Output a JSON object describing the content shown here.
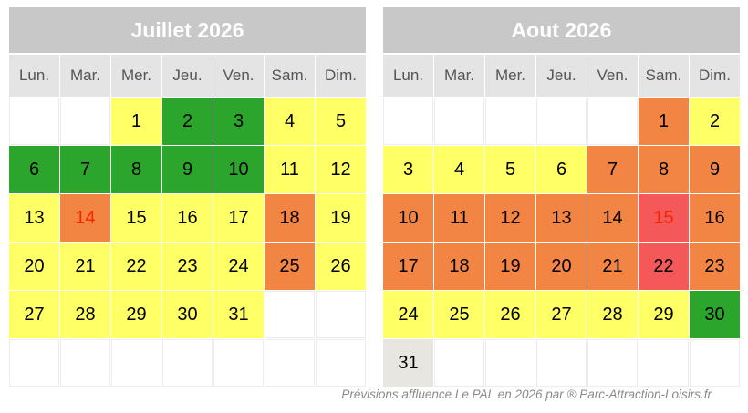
{
  "footer": "Prévisions affluence  Le PAL en 2026 par   ® Parc-Attraction-Loisirs.fr",
  "weekdays": [
    "Lun.",
    "Mar.",
    "Mer.",
    "Jeu.",
    "Ven.",
    "Sam.",
    "Dim."
  ],
  "colors": {
    "yellow": "#ffff66",
    "green": "#2ca52c",
    "orange": "#f28444",
    "red": "#f45858",
    "gray": "#e8e6e0",
    "header": "#c8c8c8",
    "weekday_header": "#e4e4e4",
    "red_text": "#ff2200"
  },
  "calendars": [
    {
      "title": "Juillet 2026",
      "weeks": [
        [
          {
            "day": "",
            "color": "empty"
          },
          {
            "day": "",
            "color": "empty"
          },
          {
            "day": "1",
            "color": "yellow"
          },
          {
            "day": "2",
            "color": "green"
          },
          {
            "day": "3",
            "color": "green"
          },
          {
            "day": "4",
            "color": "yellow"
          },
          {
            "day": "5",
            "color": "yellow"
          }
        ],
        [
          {
            "day": "6",
            "color": "green"
          },
          {
            "day": "7",
            "color": "green"
          },
          {
            "day": "8",
            "color": "green"
          },
          {
            "day": "9",
            "color": "green"
          },
          {
            "day": "10",
            "color": "green"
          },
          {
            "day": "11",
            "color": "yellow"
          },
          {
            "day": "12",
            "color": "yellow"
          }
        ],
        [
          {
            "day": "13",
            "color": "yellow"
          },
          {
            "day": "14",
            "color": "orange",
            "text": "red"
          },
          {
            "day": "15",
            "color": "yellow"
          },
          {
            "day": "16",
            "color": "yellow"
          },
          {
            "day": "17",
            "color": "yellow"
          },
          {
            "day": "18",
            "color": "orange"
          },
          {
            "day": "19",
            "color": "yellow"
          }
        ],
        [
          {
            "day": "20",
            "color": "yellow"
          },
          {
            "day": "21",
            "color": "yellow"
          },
          {
            "day": "22",
            "color": "yellow"
          },
          {
            "day": "23",
            "color": "yellow"
          },
          {
            "day": "24",
            "color": "yellow"
          },
          {
            "day": "25",
            "color": "orange"
          },
          {
            "day": "26",
            "color": "yellow"
          }
        ],
        [
          {
            "day": "27",
            "color": "yellow"
          },
          {
            "day": "28",
            "color": "yellow"
          },
          {
            "day": "29",
            "color": "yellow"
          },
          {
            "day": "30",
            "color": "yellow"
          },
          {
            "day": "31",
            "color": "yellow"
          },
          {
            "day": "",
            "color": "empty"
          },
          {
            "day": "",
            "color": "empty"
          }
        ],
        [
          {
            "day": "",
            "color": "empty"
          },
          {
            "day": "",
            "color": "empty"
          },
          {
            "day": "",
            "color": "empty"
          },
          {
            "day": "",
            "color": "empty"
          },
          {
            "day": "",
            "color": "empty"
          },
          {
            "day": "",
            "color": "empty"
          },
          {
            "day": "",
            "color": "empty"
          }
        ]
      ]
    },
    {
      "title": "Aout 2026",
      "weeks": [
        [
          {
            "day": "",
            "color": "empty"
          },
          {
            "day": "",
            "color": "empty"
          },
          {
            "day": "",
            "color": "empty"
          },
          {
            "day": "",
            "color": "empty"
          },
          {
            "day": "",
            "color": "empty"
          },
          {
            "day": "1",
            "color": "orange"
          },
          {
            "day": "2",
            "color": "yellow"
          }
        ],
        [
          {
            "day": "3",
            "color": "yellow"
          },
          {
            "day": "4",
            "color": "yellow"
          },
          {
            "day": "5",
            "color": "yellow"
          },
          {
            "day": "6",
            "color": "yellow"
          },
          {
            "day": "7",
            "color": "orange"
          },
          {
            "day": "8",
            "color": "orange"
          },
          {
            "day": "9",
            "color": "orange"
          }
        ],
        [
          {
            "day": "10",
            "color": "orange"
          },
          {
            "day": "11",
            "color": "orange"
          },
          {
            "day": "12",
            "color": "orange"
          },
          {
            "day": "13",
            "color": "orange"
          },
          {
            "day": "14",
            "color": "orange"
          },
          {
            "day": "15",
            "color": "red",
            "text": "red"
          },
          {
            "day": "16",
            "color": "orange"
          }
        ],
        [
          {
            "day": "17",
            "color": "orange"
          },
          {
            "day": "18",
            "color": "orange"
          },
          {
            "day": "19",
            "color": "orange"
          },
          {
            "day": "20",
            "color": "orange"
          },
          {
            "day": "21",
            "color": "orange"
          },
          {
            "day": "22",
            "color": "red"
          },
          {
            "day": "23",
            "color": "orange"
          }
        ],
        [
          {
            "day": "24",
            "color": "yellow"
          },
          {
            "day": "25",
            "color": "yellow"
          },
          {
            "day": "26",
            "color": "yellow"
          },
          {
            "day": "27",
            "color": "yellow"
          },
          {
            "day": "28",
            "color": "yellow"
          },
          {
            "day": "29",
            "color": "yellow"
          },
          {
            "day": "30",
            "color": "green"
          }
        ],
        [
          {
            "day": "31",
            "color": "gray"
          },
          {
            "day": "",
            "color": "empty"
          },
          {
            "day": "",
            "color": "empty"
          },
          {
            "day": "",
            "color": "empty"
          },
          {
            "day": "",
            "color": "empty"
          },
          {
            "day": "",
            "color": "empty"
          },
          {
            "day": "",
            "color": "empty"
          }
        ]
      ]
    }
  ]
}
